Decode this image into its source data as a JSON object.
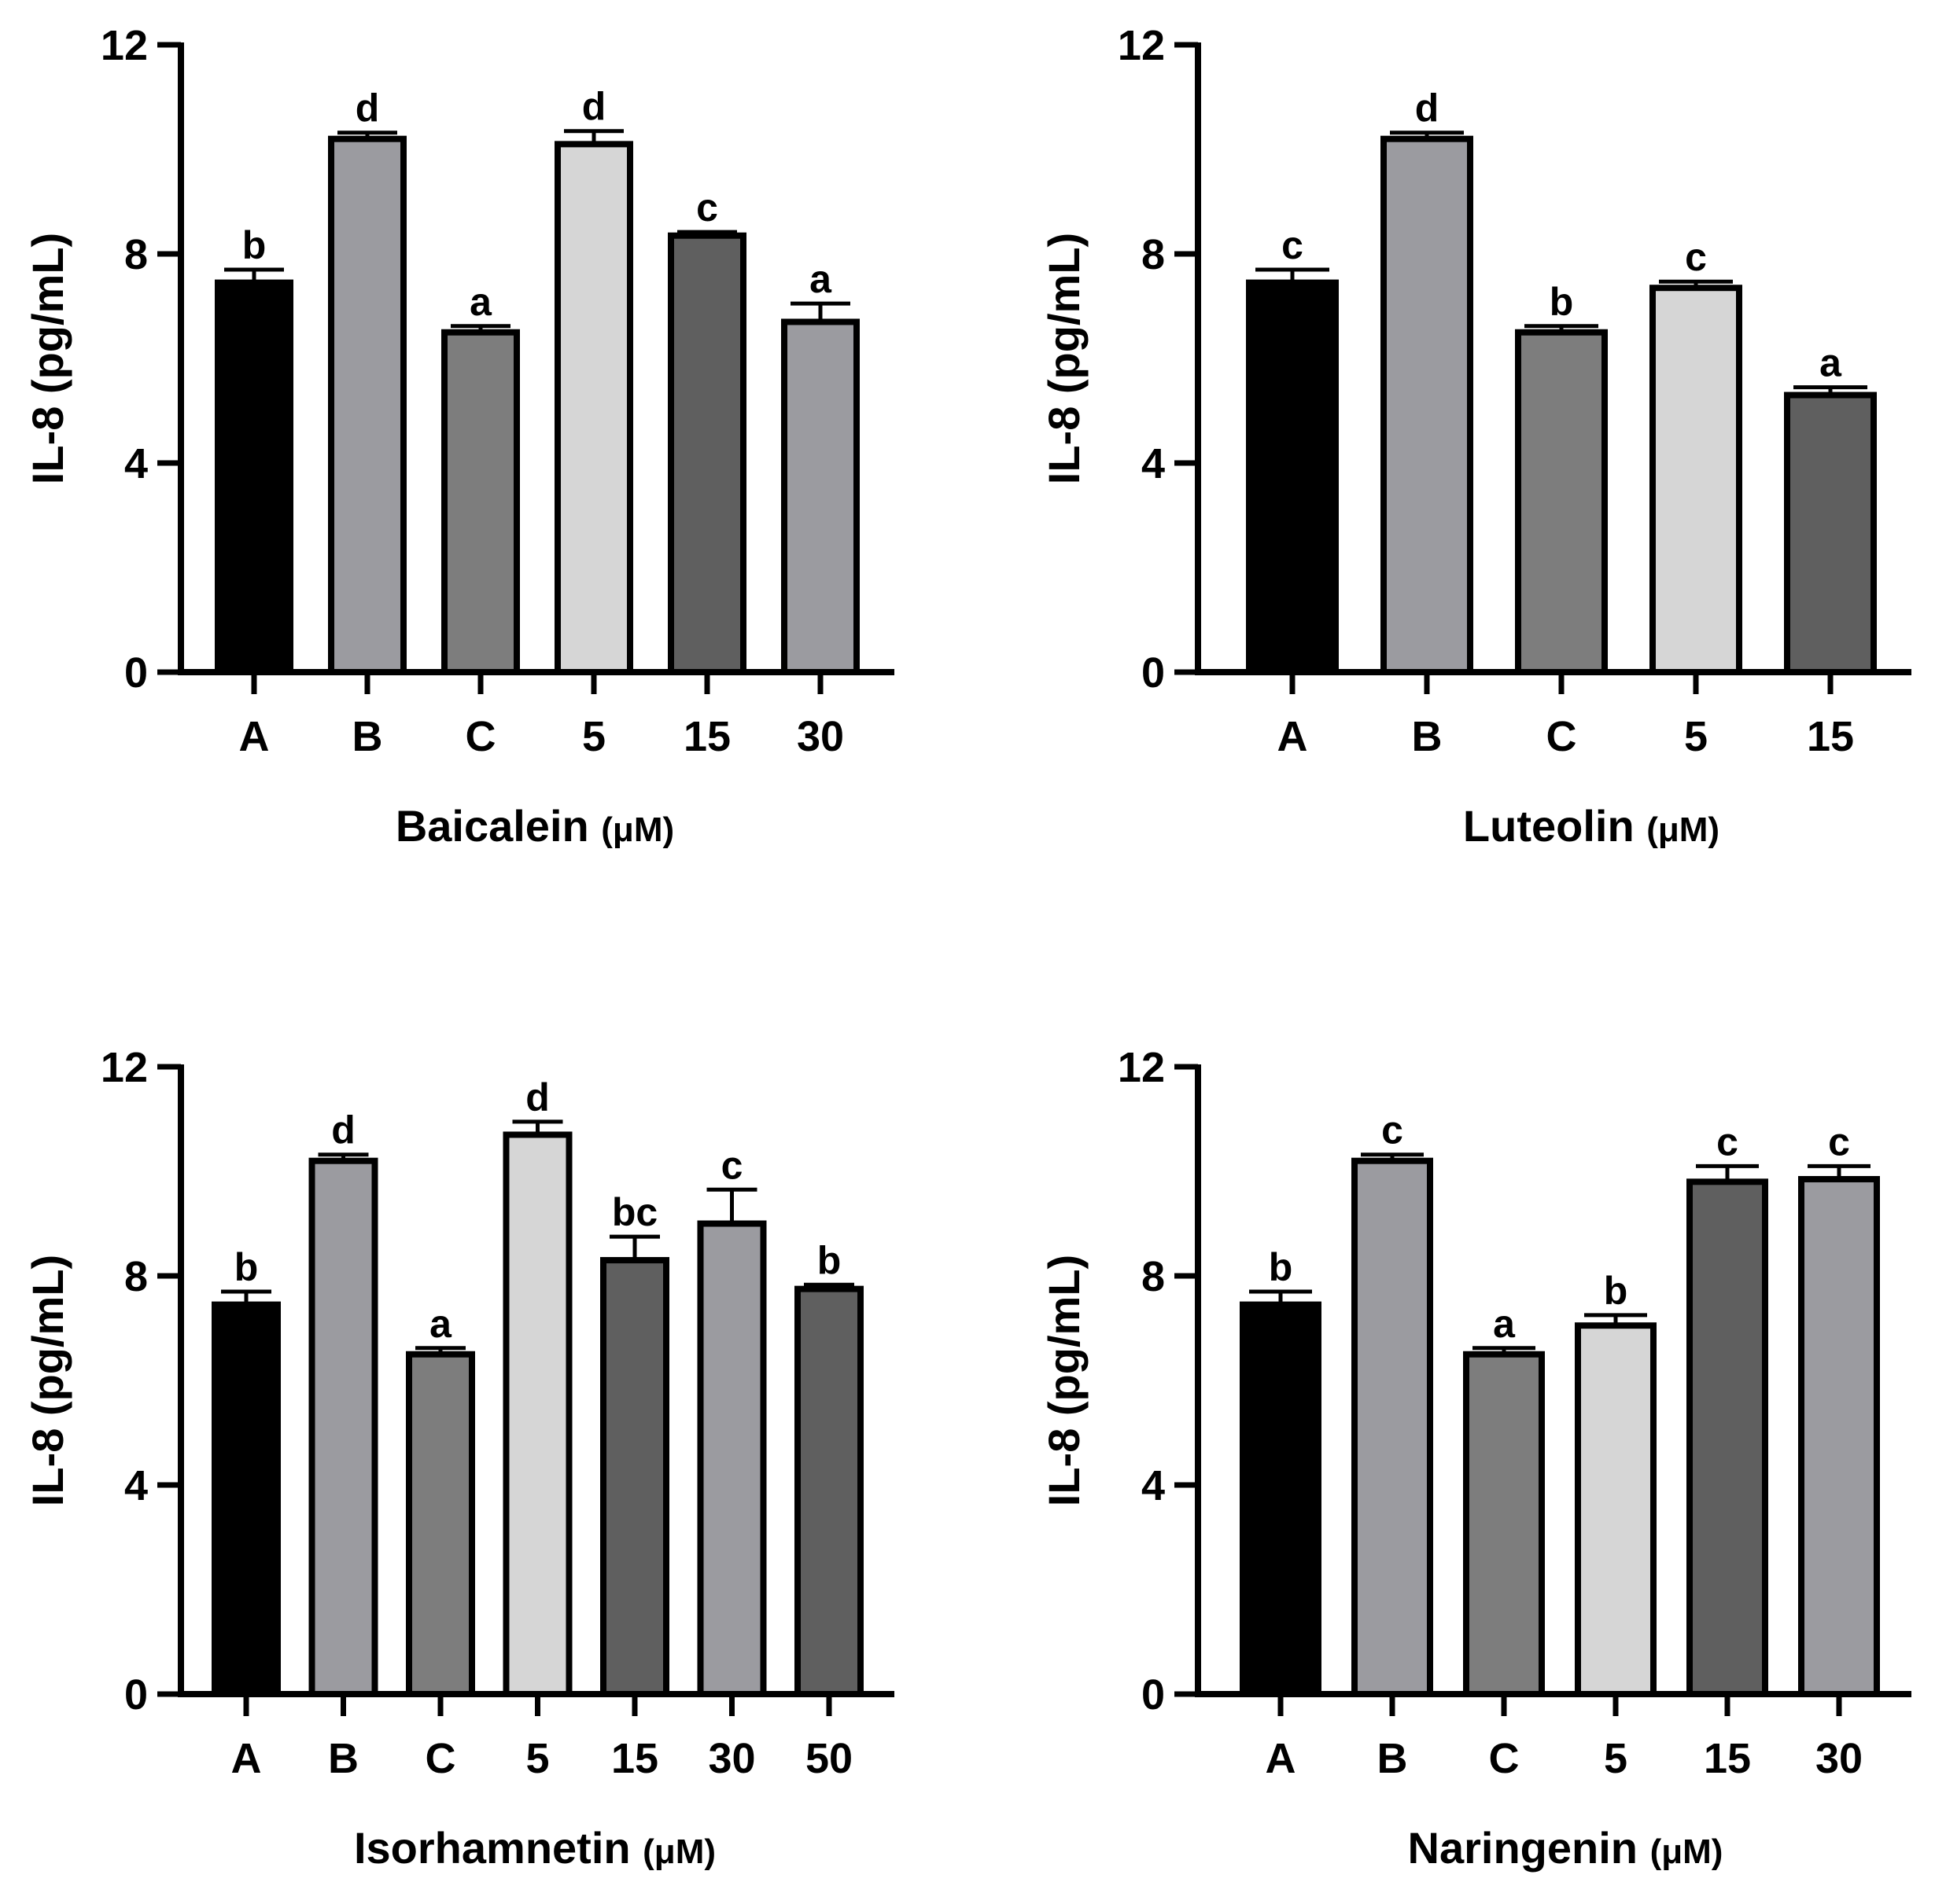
{
  "chart_data": [
    {
      "type": "bar",
      "categories": [
        "A",
        "B",
        "C",
        "5",
        "15",
        "30"
      ],
      "values": [
        7.45,
        10.2,
        6.5,
        10.1,
        8.35,
        6.7
      ],
      "errors": [
        0.25,
        0.12,
        0.12,
        0.25,
        0.07,
        0.35
      ],
      "significance": [
        "b",
        "d",
        "a",
        "d",
        "c",
        "a"
      ],
      "colors": [
        "#000000",
        "#9b9ba0",
        "#7d7d7d",
        "#d6d6d6",
        "#5f5f5f",
        "#9b9ba0"
      ],
      "xlabel": "Baicalein",
      "xunit": "(μM)",
      "ylabel": "IL-8 (pg/mL)",
      "ylim": [
        0,
        12
      ],
      "yticks": [
        "0",
        "4",
        "8",
        "12"
      ],
      "grid": false
    },
    {
      "type": "bar",
      "categories": [
        "A",
        "B",
        "C",
        "5",
        "15"
      ],
      "values": [
        7.45,
        10.2,
        6.5,
        7.35,
        5.3
      ],
      "errors": [
        0.25,
        0.12,
        0.12,
        0.12,
        0.15
      ],
      "significance": [
        "c",
        "d",
        "b",
        "c",
        "a"
      ],
      "colors": [
        "#000000",
        "#9b9ba0",
        "#7d7d7d",
        "#d6d6d6",
        "#5f5f5f"
      ],
      "xlabel": "Luteolin",
      "xunit": "(μM)",
      "ylabel": "IL-8 (pg/mL)",
      "ylim": [
        0,
        12
      ],
      "yticks": [
        "0",
        "4",
        "8",
        "12"
      ],
      "grid": false
    },
    {
      "type": "bar",
      "categories": [
        "A",
        "B",
        "C",
        "5",
        "15",
        "30",
        "50"
      ],
      "values": [
        7.45,
        10.2,
        6.5,
        10.7,
        8.3,
        9.0,
        7.75
      ],
      "errors": [
        0.25,
        0.12,
        0.12,
        0.25,
        0.45,
        0.65,
        0.08
      ],
      "significance": [
        "b",
        "d",
        "a",
        "d",
        "bc",
        "c",
        "b"
      ],
      "colors": [
        "#000000",
        "#9b9ba0",
        "#7d7d7d",
        "#d6d6d6",
        "#5f5f5f",
        "#9b9ba0",
        "#5f5f5f"
      ],
      "xlabel": "Isorhamnetin",
      "xunit": "(μM)",
      "ylabel": "IL-8 (pg/mL)",
      "ylim": [
        0,
        12
      ],
      "yticks": [
        "0",
        "4",
        "8",
        "12"
      ],
      "grid": false
    },
    {
      "type": "bar",
      "categories": [
        "A",
        "B",
        "C",
        "5",
        "15",
        "30"
      ],
      "values": [
        7.45,
        10.2,
        6.5,
        7.05,
        9.8,
        9.85
      ],
      "errors": [
        0.25,
        0.12,
        0.12,
        0.2,
        0.3,
        0.25
      ],
      "significance": [
        "b",
        "c",
        "a",
        "b",
        "c",
        "c"
      ],
      "colors": [
        "#000000",
        "#9b9ba0",
        "#7d7d7d",
        "#d6d6d6",
        "#5f5f5f",
        "#9b9ba0"
      ],
      "xlabel": "Naringenin",
      "xunit": "(μM)",
      "ylabel": "IL-8 (pg/mL)",
      "ylim": [
        0,
        12
      ],
      "yticks": [
        "0",
        "4",
        "8",
        "12"
      ],
      "grid": false
    }
  ]
}
